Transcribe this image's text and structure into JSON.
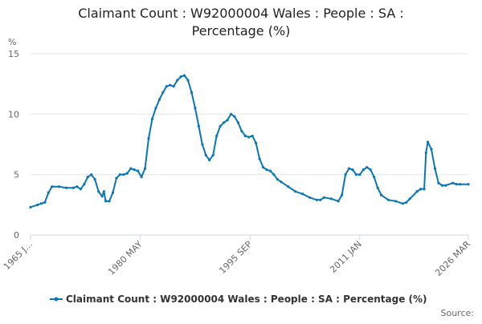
{
  "chart_data": {
    "type": "line",
    "title": [
      "Claimant Count : W92000004 Wales : People : SA :",
      "Percentage (%)"
    ],
    "y_label": "%",
    "source": "Source:",
    "grid": true,
    "xlim": [
      "1965-01",
      "2026-03"
    ],
    "xticks": [
      {
        "value": "1965-01",
        "label": "1965 J..."
      },
      {
        "value": "1980-05",
        "label": "1980 MAY"
      },
      {
        "value": "1995-09",
        "label": "1995 SEP"
      },
      {
        "value": "2011-01",
        "label": "2011 JAN"
      },
      {
        "value": "2026-03",
        "label": "2026 MAR"
      }
    ],
    "ylim": [
      0,
      15
    ],
    "yticks": [
      0,
      5,
      10,
      15
    ],
    "x": [
      "1965-01",
      "1966-01",
      "1966-07",
      "1967-01",
      "1967-07",
      "1968-01",
      "1969-01",
      "1970-01",
      "1971-01",
      "1971-07",
      "1972-01",
      "1972-07",
      "1973-01",
      "1973-07",
      "1974-01",
      "1974-07",
      "1975-01",
      "1975-04",
      "1975-07",
      "1976-01",
      "1976-07",
      "1977-01",
      "1977-07",
      "1978-01",
      "1978-07",
      "1979-01",
      "1979-07",
      "1980-01",
      "1980-07",
      "1981-01",
      "1981-07",
      "1982-01",
      "1982-07",
      "1983-01",
      "1983-07",
      "1984-01",
      "1984-07",
      "1985-01",
      "1985-07",
      "1986-01",
      "1986-07",
      "1987-01",
      "1987-07",
      "1988-01",
      "1988-07",
      "1989-01",
      "1989-07",
      "1990-01",
      "1990-07",
      "1991-01",
      "1991-07",
      "1992-01",
      "1992-07",
      "1993-01",
      "1993-07",
      "1994-01",
      "1994-07",
      "1995-01",
      "1995-07",
      "1996-01",
      "1996-07",
      "1997-01",
      "1997-07",
      "1998-01",
      "1998-07",
      "1999-01",
      "1999-07",
      "2000-01",
      "2001-01",
      "2002-01",
      "2003-01",
      "2004-01",
      "2005-01",
      "2005-07",
      "2006-01",
      "2007-01",
      "2008-01",
      "2008-07",
      "2009-01",
      "2009-07",
      "2010-01",
      "2010-07",
      "2011-01",
      "2011-07",
      "2012-01",
      "2012-07",
      "2013-01",
      "2013-07",
      "2014-01",
      "2015-01",
      "2016-01",
      "2017-01",
      "2017-07",
      "2018-01",
      "2019-01",
      "2019-07",
      "2020-01",
      "2020-04",
      "2020-07",
      "2021-01",
      "2021-07",
      "2022-01",
      "2022-07",
      "2023-01",
      "2024-01",
      "2024-07",
      "2025-01",
      "2026-03"
    ],
    "series": [
      {
        "name": "Claimant Count : W92000004 Wales : People : SA : Percentage (%)",
        "color": "#0a77b5",
        "values": [
          2.3,
          2.5,
          2.6,
          2.7,
          3.5,
          4.0,
          4.0,
          3.9,
          3.9,
          4.0,
          3.8,
          4.2,
          4.8,
          5.0,
          4.6,
          3.6,
          3.2,
          3.6,
          2.8,
          2.8,
          3.5,
          4.7,
          5.0,
          5.0,
          5.1,
          5.5,
          5.4,
          5.3,
          4.8,
          5.5,
          8.0,
          9.6,
          10.5,
          11.2,
          11.8,
          12.3,
          12.4,
          12.3,
          12.8,
          13.1,
          13.2,
          12.8,
          11.8,
          10.5,
          9.0,
          7.5,
          6.6,
          6.2,
          6.6,
          8.2,
          9.0,
          9.3,
          9.5,
          10.0,
          9.8,
          9.3,
          8.6,
          8.2,
          8.1,
          8.2,
          7.6,
          6.3,
          5.6,
          5.4,
          5.3,
          5.0,
          4.6,
          4.4,
          4.0,
          3.6,
          3.4,
          3.1,
          2.9,
          2.9,
          3.1,
          3.0,
          2.8,
          3.3,
          5.0,
          5.5,
          5.4,
          5.0,
          5.0,
          5.4,
          5.6,
          5.4,
          4.8,
          3.9,
          3.3,
          2.9,
          2.8,
          2.6,
          2.7,
          3.0,
          3.6,
          3.8,
          3.8,
          6.8,
          7.7,
          7.1,
          5.5,
          4.3,
          4.1,
          4.1,
          4.3,
          4.2,
          4.2,
          4.2
        ]
      }
    ]
  }
}
